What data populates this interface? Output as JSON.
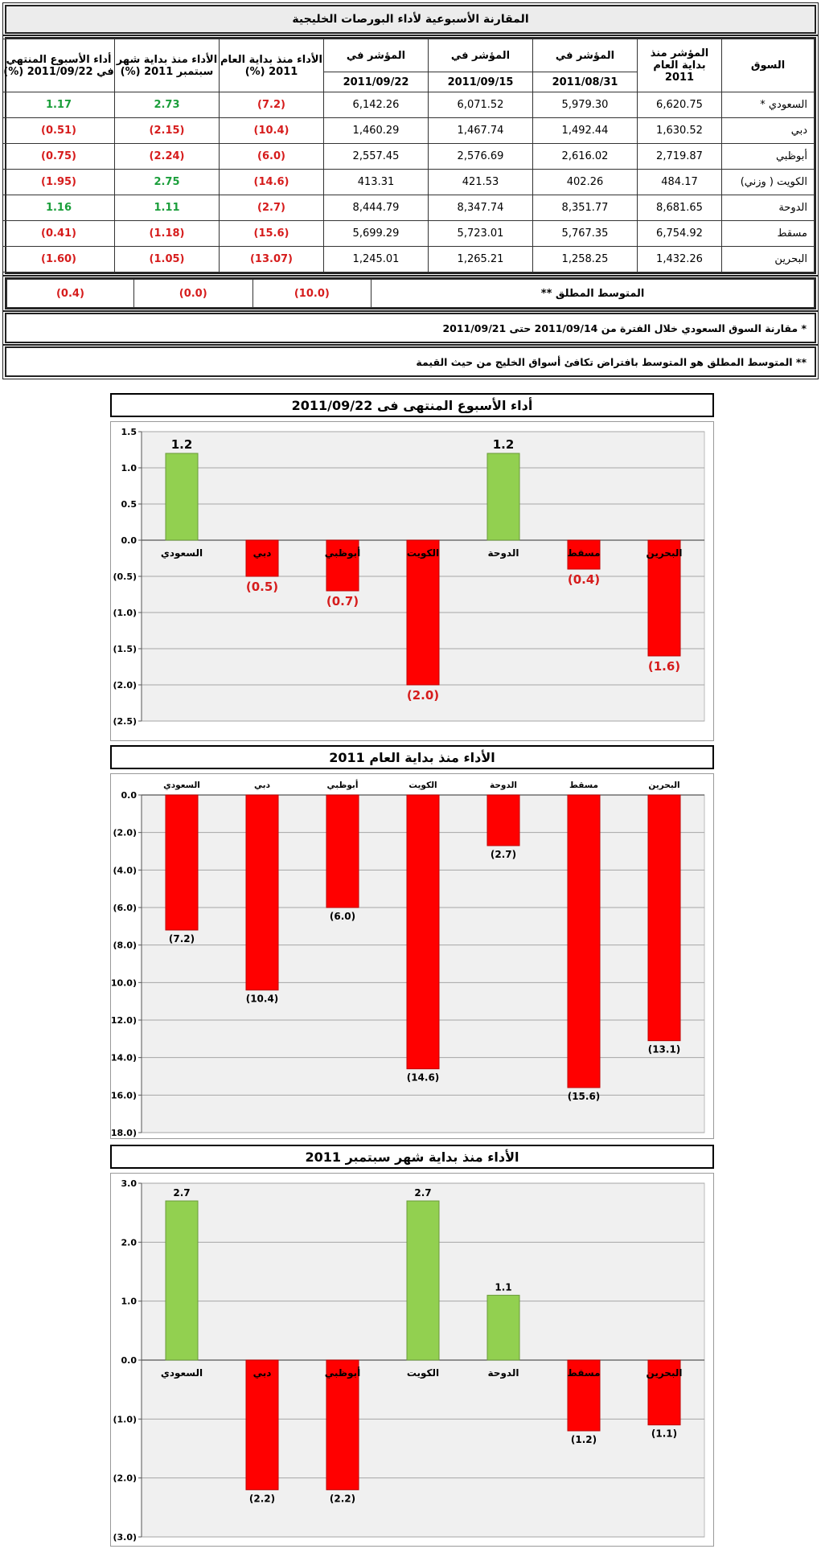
{
  "table": {
    "title": "المقارنة الأسبوعية لأداء البورصات الخليجية",
    "headers": {
      "market": "السوق",
      "index_start": "المؤشر منذ بداية العام 2011",
      "index_label": "المؤشر في",
      "date1": "2011/08/31",
      "date2": "2011/09/15",
      "date3": "2011/09/22",
      "ytd": "الأداء منذ بداية العام 2011 (%)",
      "mtd": "الأداء منذ بداية شهر سبتمبر 2011 (%)",
      "wtd": "أداء الأسبوع المنتهي في 2011/09/22 (%)"
    },
    "rows": [
      {
        "market": "السعودي *",
        "start": "6,620.75",
        "d1": "5,979.30",
        "d2": "6,071.52",
        "d3": "6,142.26",
        "ytd": "(7.2)",
        "mtd": "2.73",
        "wtd": "1.17"
      },
      {
        "market": "دبي",
        "start": "1,630.52",
        "d1": "1,492.44",
        "d2": "1,467.74",
        "d3": "1,460.29",
        "ytd": "(10.4)",
        "mtd": "(2.15)",
        "wtd": "(0.51)"
      },
      {
        "market": "أبوظبي",
        "start": "2,719.87",
        "d1": "2,616.02",
        "d2": "2,576.69",
        "d3": "2,557.45",
        "ytd": "(6.0)",
        "mtd": "(2.24)",
        "wtd": "(0.75)"
      },
      {
        "market": "الكويت ( وزني)",
        "start": "484.17",
        "d1": "402.26",
        "d2": "421.53",
        "d3": "413.31",
        "ytd": "(14.6)",
        "mtd": "2.75",
        "wtd": "(1.95)"
      },
      {
        "market": "الدوحة",
        "start": "8,681.65",
        "d1": "8,351.77",
        "d2": "8,347.74",
        "d3": "8,444.79",
        "ytd": "(2.7)",
        "mtd": "1.11",
        "wtd": "1.16"
      },
      {
        "market": "مسقط",
        "start": "6,754.92",
        "d1": "5,767.35",
        "d2": "5,723.01",
        "d3": "5,699.29",
        "ytd": "(15.6)",
        "mtd": "(1.18)",
        "wtd": "(0.41)"
      },
      {
        "market": "البحرين",
        "start": "1,432.26",
        "d1": "1,258.25",
        "d2": "1,265.21",
        "d3": "1,245.01",
        "ytd": "(13.07)",
        "mtd": "(1.05)",
        "wtd": "(1.60)"
      }
    ],
    "average": {
      "label": "المتوسط المطلق **",
      "ytd": "(10.0)",
      "mtd": "(0.0)",
      "wtd": "(0.4)"
    },
    "note1": "* مقارنة السوق السعودي خلال الفترة من 2011/09/14 حتى 2011/09/21",
    "note2": "** المتوسط المطلق هو المتوسط بافتراض تكافئ أسواق الخليج من حيث القيمة"
  },
  "colors": {
    "positive": "#92d050",
    "negative": "#ff0000",
    "pos_text": "#1a9e3a",
    "neg_text": "#d61c1c",
    "plot_bg": "#f0f0f0",
    "grid": "#a6a6a6"
  },
  "chart_data": [
    {
      "type": "bar",
      "title": "أداء الأسبوع المنتهى فى 2011/09/22",
      "categories": [
        "السعودي",
        "دبي",
        "أبوظبي",
        "الكويت",
        "الدوحة",
        "مسقط",
        "البحرين"
      ],
      "values": [
        1.2,
        -0.5,
        -0.7,
        -2.0,
        1.2,
        -0.4,
        -1.6
      ],
      "labels": [
        "1.2",
        "(0.5)",
        "(0.7)",
        "(2.0)",
        "1.2",
        "(0.4)",
        "(1.6)"
      ],
      "ylim": [
        -2.5,
        1.5
      ],
      "ticks": [
        1.5,
        1.0,
        0.5,
        0.0,
        -0.5,
        -1.0,
        -1.5,
        -2.0,
        -2.5
      ],
      "tick_labels": [
        "1.5",
        "1.0",
        "0.5",
        "0.0",
        "(0.5)",
        "(1.0)",
        "(1.5)",
        "(2.0)",
        "(2.5)"
      ],
      "grid": true,
      "category_labels_at": "zero"
    },
    {
      "type": "bar",
      "title": "الأداء منذ بداية العام 2011",
      "categories": [
        "السعودي",
        "دبي",
        "أبوظبي",
        "الكويت",
        "الدوحة",
        "مسقط",
        "البحرين"
      ],
      "values": [
        -7.2,
        -10.4,
        -6.0,
        -14.6,
        -2.7,
        -15.6,
        -13.1
      ],
      "labels": [
        "(7.2)",
        "(10.4)",
        "(6.0)",
        "(14.6)",
        "(2.7)",
        "(15.6)",
        "(13.1)"
      ],
      "ylim": [
        -18,
        0
      ],
      "ticks": [
        0,
        -2,
        -4,
        -6,
        -8,
        -10,
        -12,
        -14,
        -16,
        -18
      ],
      "tick_labels": [
        "0.0",
        "(2.0)",
        "(4.0)",
        "(6.0)",
        "(8.0)",
        "(10.0)",
        "(12.0)",
        "(14.0)",
        "(16.0)",
        "(18.0)"
      ],
      "grid": true,
      "category_labels_at": "top"
    },
    {
      "type": "bar",
      "title": "الأداء منذ بداية شهر سبتمبر 2011",
      "categories": [
        "السعودي",
        "دبي",
        "أبوظبي",
        "الكويت",
        "الدوحة",
        "مسقط",
        "البحرين"
      ],
      "values": [
        2.7,
        -2.2,
        -2.2,
        2.7,
        1.1,
        -1.2,
        -1.1
      ],
      "labels": [
        "2.7",
        "(2.2)",
        "(2.2)",
        "2.7",
        "1.1",
        "(1.2)",
        "(1.1)"
      ],
      "ylim": [
        -3,
        3
      ],
      "ticks": [
        3,
        2,
        1,
        0,
        -1,
        -2,
        -3
      ],
      "tick_labels": [
        "3.0",
        "2.0",
        "1.0",
        "0.0",
        "(1.0)",
        "(2.0)",
        "(3.0)"
      ],
      "grid": true,
      "category_labels_at": "zero"
    }
  ]
}
